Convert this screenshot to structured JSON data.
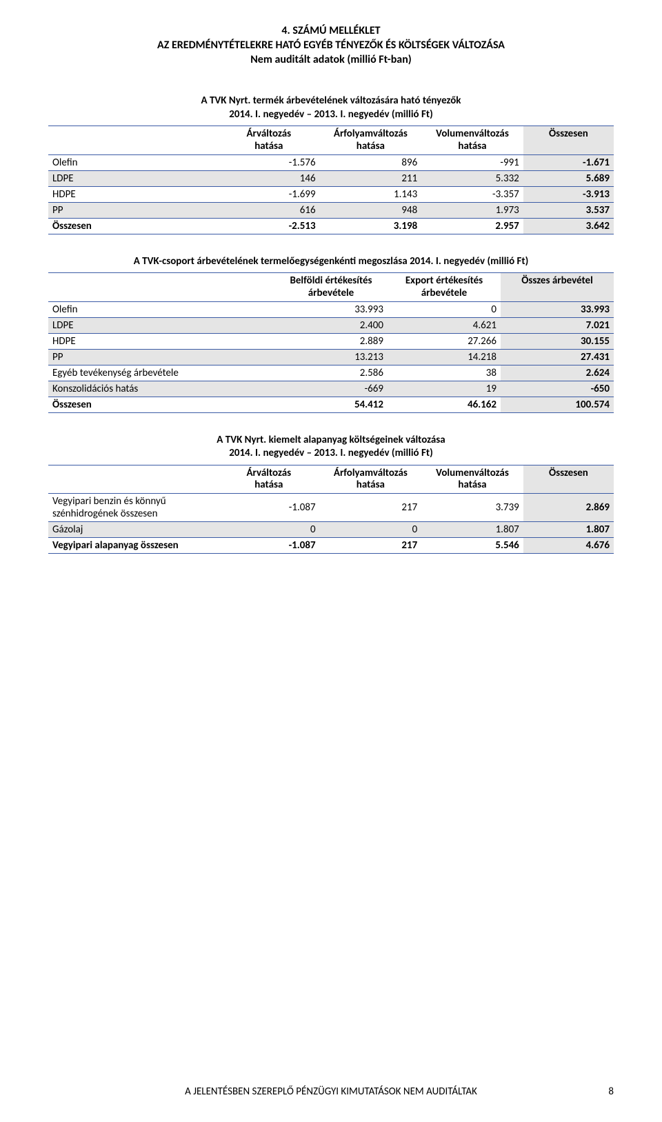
{
  "header": {
    "line1": "4. SZÁMÚ MELLÉKLET",
    "line2": "AZ EREDMÉNYTÉTELEKRE HATÓ EGYÉB TÉNYEZŐK ÉS KÖLTSÉGEK VÁLTOZÁSA",
    "line3": "Nem auditált adatok (millió Ft-ban)"
  },
  "table1": {
    "title1": "A TVK Nyrt. termék árbevételének változására ható tényezők",
    "title2": "2014. I. negyedév – 2013. I. negyedév (millió Ft)",
    "headers": [
      "",
      "Árváltozás\nhatása",
      "Árfolyamváltozás\nhatása",
      "Volumenváltozás\nhatása",
      "Összesen"
    ],
    "rows": [
      {
        "label": "Olefin",
        "v": [
          "-1.576",
          "896",
          "-991",
          "-1.671"
        ],
        "shade": false
      },
      {
        "label": "LDPE",
        "v": [
          "146",
          "211",
          "5.332",
          "5.689"
        ],
        "shade": true
      },
      {
        "label": "HDPE",
        "v": [
          "-1.699",
          "1.143",
          "-3.357",
          "-3.913"
        ],
        "shade": false
      },
      {
        "label": "PP",
        "v": [
          "616",
          "948",
          "1.973",
          "3.537"
        ],
        "shade": true
      }
    ],
    "total": {
      "label": "Összesen",
      "v": [
        "-2.513",
        "3.198",
        "2.957",
        "3.642"
      ]
    }
  },
  "table2": {
    "title1": "A TVK-csoport árbevételének termelőegységenkénti megoszlása 2014. I. negyedév (millió Ft)",
    "headers": [
      "",
      "Belföldi értékesítés\nárbevétele",
      "Export értékesítés\nárbevétele",
      "Összes árbevétel"
    ],
    "rows": [
      {
        "label": "Olefin",
        "v": [
          "33.993",
          "0",
          "33.993"
        ],
        "shade": false
      },
      {
        "label": "LDPE",
        "v": [
          "2.400",
          "4.621",
          "7.021"
        ],
        "shade": true
      },
      {
        "label": "HDPE",
        "v": [
          "2.889",
          "27.266",
          "30.155"
        ],
        "shade": false
      },
      {
        "label": "PP",
        "v": [
          "13.213",
          "14.218",
          "27.431"
        ],
        "shade": true
      },
      {
        "label": "Egyéb tevékenység árbevétele",
        "v": [
          "2.586",
          "38",
          "2.624"
        ],
        "shade": false
      },
      {
        "label": "Konszolidációs hatás",
        "v": [
          "-669",
          "19",
          "-650"
        ],
        "shade": true
      }
    ],
    "total": {
      "label": "Összesen",
      "v": [
        "54.412",
        "46.162",
        "100.574"
      ]
    }
  },
  "table3": {
    "title1": "A TVK Nyrt. kiemelt alapanyag költségeinek változása",
    "title2": "2014. I. negyedév – 2013. I. negyedév (millió Ft)",
    "headers": [
      "",
      "Árváltozás\nhatása",
      "Árfolyamváltozás\nhatása",
      "Volumenváltozás\nhatása",
      "Összesen"
    ],
    "rows": [
      {
        "label": "Vegyipari benzin és könnyű\nszénhidrogének összesen",
        "v": [
          "-1.087",
          "217",
          "3.739",
          "2.869"
        ],
        "shade": false
      },
      {
        "label": "Gázolaj",
        "v": [
          "0",
          "0",
          "1.807",
          "1.807"
        ],
        "shade": true
      }
    ],
    "total": {
      "label": "Vegyipari alapanyag összesen",
      "v": [
        "-1.087",
        "217",
        "5.546",
        "4.676"
      ]
    }
  },
  "footer": "A JELENTÉSBEN SZEREPLŐ PÉNZÜGYI KIMUTATÁSOK NEM AUDITÁLTAK",
  "page": "8"
}
